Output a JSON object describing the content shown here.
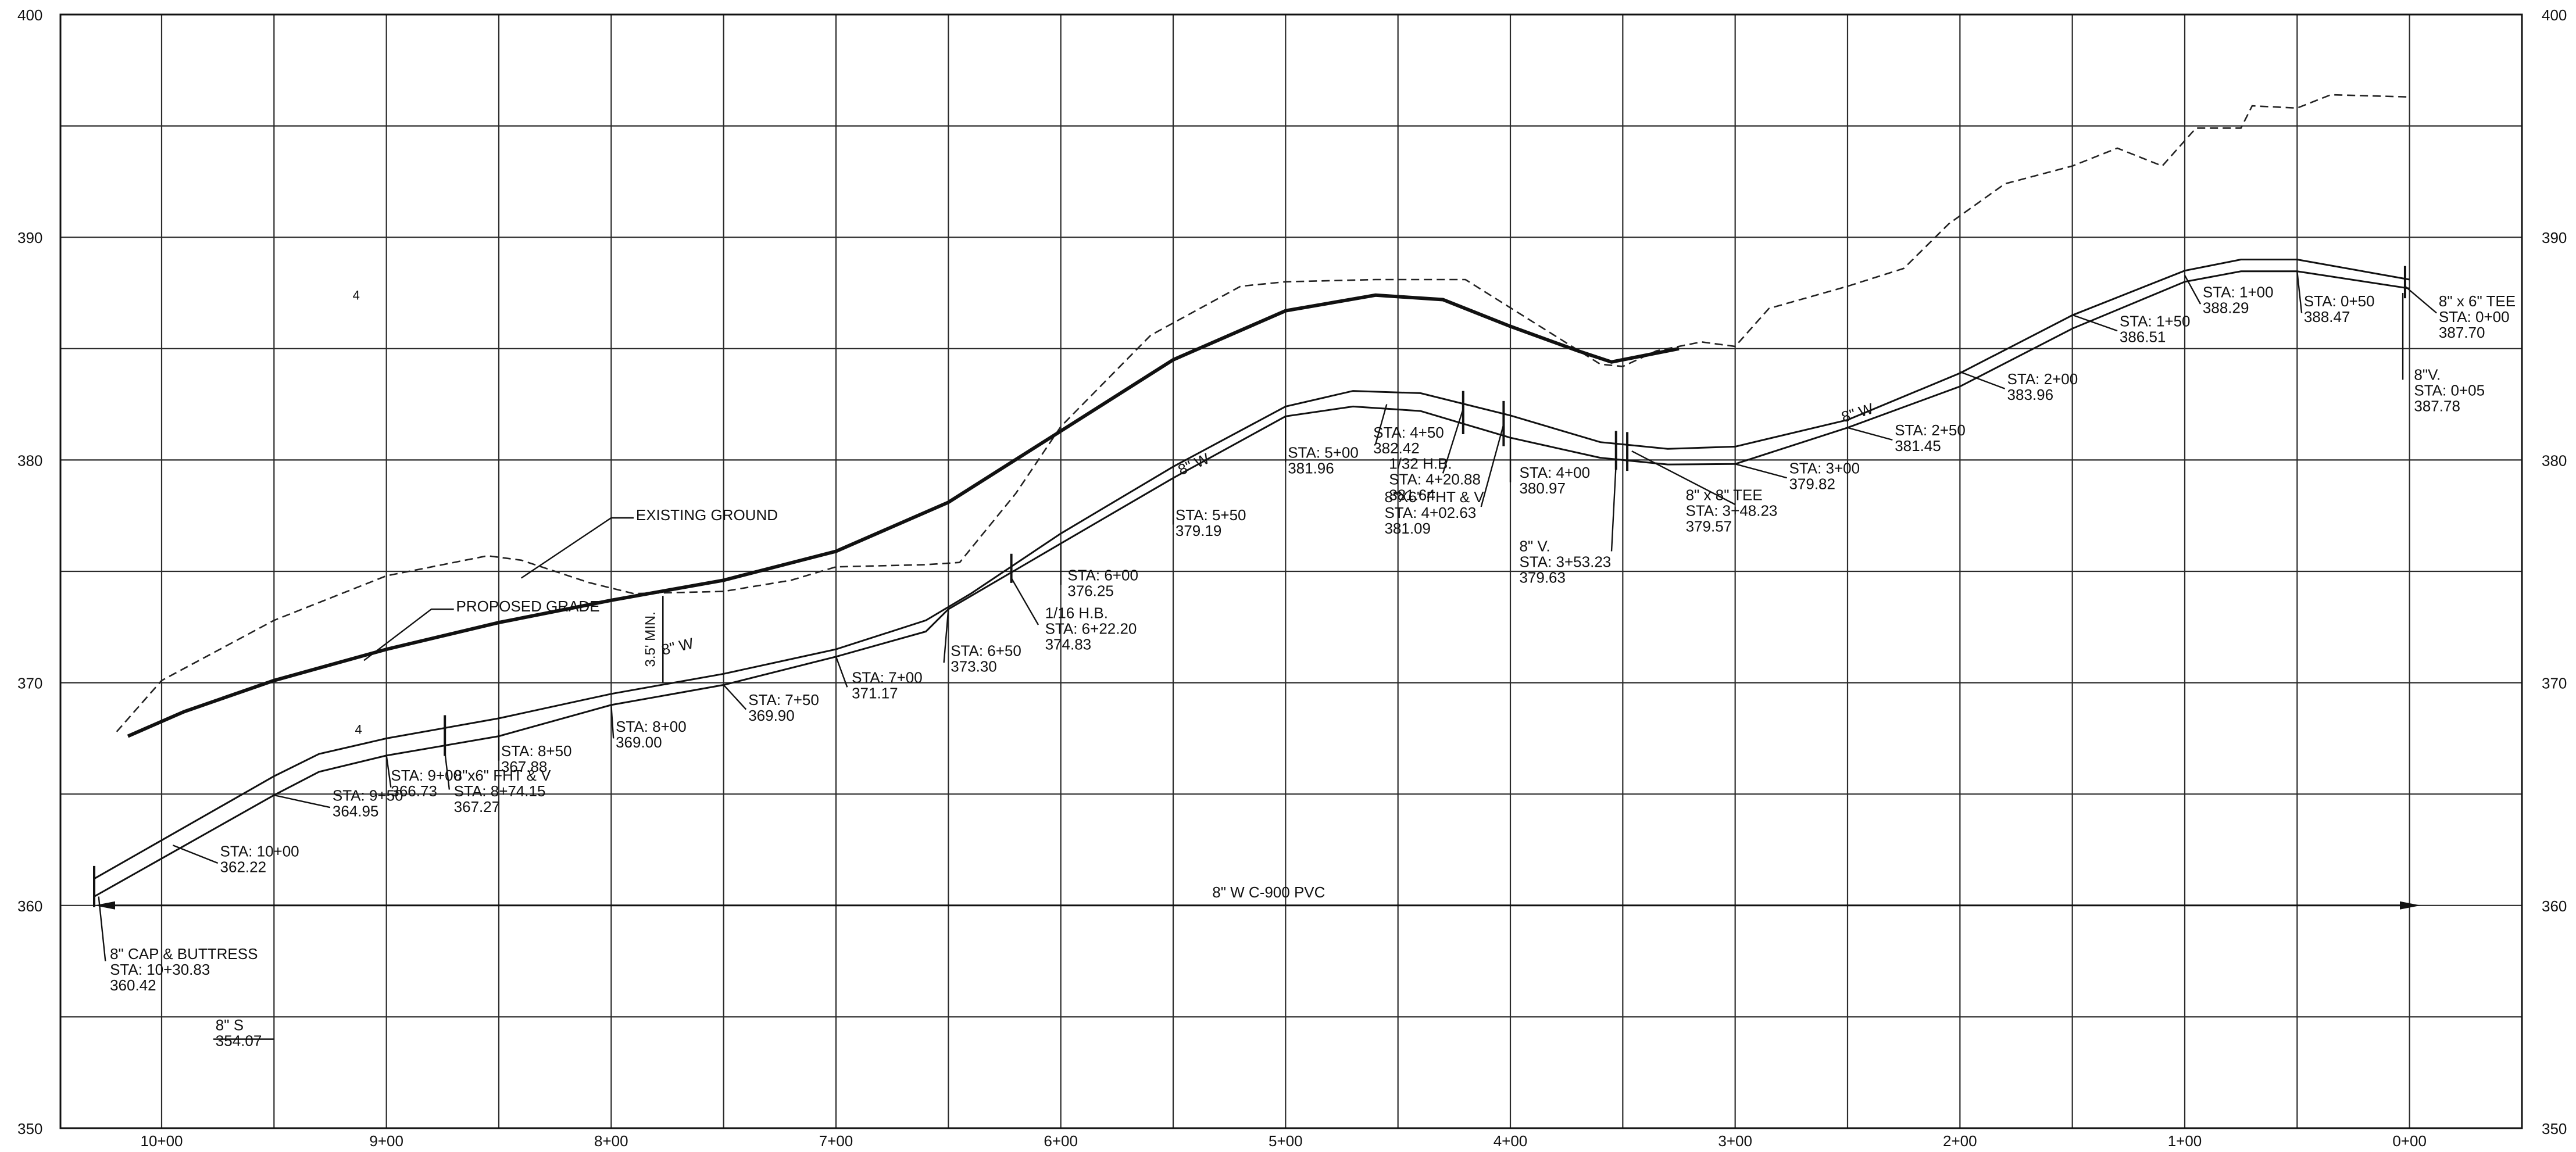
{
  "profile": {
    "axis": {
      "elevations": [
        350,
        360,
        370,
        380,
        390,
        400
      ],
      "elevation_labels": [
        "350",
        "360",
        "370",
        "380",
        "390",
        "400"
      ],
      "stations": [
        10,
        9,
        8,
        7,
        6,
        5,
        4,
        3,
        2,
        1,
        0
      ],
      "station_labels": [
        "10+00",
        "9+00",
        "8+00",
        "7+00",
        "6+00",
        "5+00",
        "4+00",
        "3+00",
        "2+00",
        "1+00",
        "0+00"
      ],
      "station_range": [
        10.45,
        -0.5
      ],
      "elevation_range": [
        350,
        400
      ]
    },
    "existing_ground": {
      "label": "EXISTING GROUND",
      "points": [
        [
          10.2,
          367.8
        ],
        [
          10.0,
          370.1
        ],
        [
          9.5,
          372.8
        ],
        [
          9.0,
          374.8
        ],
        [
          8.55,
          375.7
        ],
        [
          8.4,
          375.5
        ],
        [
          8.1,
          374.5
        ],
        [
          7.9,
          374.0
        ],
        [
          7.5,
          374.1
        ],
        [
          7.2,
          374.6
        ],
        [
          7.0,
          375.2
        ],
        [
          6.6,
          375.3
        ],
        [
          6.45,
          375.4
        ],
        [
          6.2,
          378.5
        ],
        [
          6.0,
          381.5
        ],
        [
          5.6,
          385.6
        ],
        [
          5.2,
          387.8
        ],
        [
          5.0,
          388.0
        ],
        [
          4.6,
          388.1
        ],
        [
          4.2,
          388.1
        ],
        [
          3.9,
          386.2
        ],
        [
          3.6,
          384.3
        ],
        [
          3.5,
          384.2
        ],
        [
          3.35,
          384.9
        ],
        [
          3.15,
          385.3
        ],
        [
          3.0,
          385.1
        ],
        [
          2.85,
          386.8
        ],
        [
          2.5,
          387.8
        ],
        [
          2.25,
          388.6
        ],
        [
          2.05,
          390.6
        ],
        [
          1.8,
          392.4
        ],
        [
          1.5,
          393.2
        ],
        [
          1.3,
          394.0
        ],
        [
          1.1,
          393.2
        ],
        [
          0.95,
          394.9
        ],
        [
          0.75,
          394.9
        ],
        [
          0.7,
          395.9
        ],
        [
          0.5,
          395.8
        ],
        [
          0.35,
          396.4
        ],
        [
          0.0,
          396.3
        ]
      ]
    },
    "proposed_grade": {
      "label": "PROPOSED GRADE",
      "points": [
        [
          10.15,
          367.6
        ],
        [
          9.9,
          368.7
        ],
        [
          9.5,
          370.1
        ],
        [
          9.0,
          371.5
        ],
        [
          8.5,
          372.7
        ],
        [
          8.0,
          373.7
        ],
        [
          7.5,
          374.6
        ],
        [
          7.0,
          375.9
        ],
        [
          6.5,
          378.1
        ],
        [
          6.0,
          381.3
        ],
        [
          5.5,
          384.5
        ],
        [
          5.0,
          386.7
        ],
        [
          4.6,
          387.4
        ],
        [
          4.3,
          387.2
        ],
        [
          4.0,
          386.0
        ],
        [
          3.7,
          384.9
        ],
        [
          3.55,
          384.4
        ],
        [
          3.4,
          384.7
        ],
        [
          3.25,
          385.0
        ]
      ]
    },
    "pipe_top": {
      "points": [
        [
          10.3,
          361.2
        ],
        [
          9.5,
          365.8
        ],
        [
          9.3,
          366.8
        ],
        [
          9.0,
          367.5
        ],
        [
          8.5,
          368.4
        ],
        [
          8.0,
          369.5
        ],
        [
          7.5,
          370.4
        ],
        [
          7.0,
          371.5
        ],
        [
          6.6,
          372.8
        ],
        [
          6.4,
          374.0
        ],
        [
          6.0,
          376.7
        ],
        [
          5.5,
          379.7
        ],
        [
          5.0,
          382.4
        ],
        [
          4.7,
          383.1
        ],
        [
          4.4,
          383.0
        ],
        [
          4.0,
          382.0
        ],
        [
          3.6,
          380.8
        ],
        [
          3.3,
          380.5
        ],
        [
          3.0,
          380.6
        ],
        [
          2.5,
          381.8
        ],
        [
          2.0,
          383.9
        ],
        [
          1.5,
          386.5
        ],
        [
          1.0,
          388.5
        ],
        [
          0.75,
          389.0
        ],
        [
          0.5,
          389.0
        ],
        [
          0.0,
          388.1
        ]
      ]
    },
    "pipe_bottom": {
      "points": [
        [
          10.3,
          360.4
        ],
        [
          9.5,
          364.95
        ],
        [
          9.3,
          366.0
        ],
        [
          9.0,
          366.73
        ],
        [
          8.5,
          367.6
        ],
        [
          8.0,
          369.0
        ],
        [
          7.5,
          369.9
        ],
        [
          7.0,
          371.17
        ],
        [
          6.6,
          372.3
        ],
        [
          6.5,
          373.3
        ],
        [
          6.0,
          376.25
        ],
        [
          5.5,
          379.19
        ],
        [
          5.0,
          381.96
        ],
        [
          4.7,
          382.4
        ],
        [
          4.4,
          382.2
        ],
        [
          4.0,
          381.0
        ],
        [
          3.6,
          380.1
        ],
        [
          3.3,
          379.8
        ],
        [
          3.0,
          379.82
        ],
        [
          2.5,
          381.45
        ],
        [
          2.0,
          383.3
        ],
        [
          1.5,
          385.9
        ],
        [
          1.0,
          388.0
        ],
        [
          0.75,
          388.47
        ],
        [
          0.5,
          388.47
        ],
        [
          0.0,
          387.7
        ]
      ]
    },
    "main_line": {
      "label": "8\" W C-900 PVC",
      "elevation": 360,
      "from": 10.3,
      "to": -0.05
    },
    "pipe_labels": [
      {
        "text": "8\" W",
        "station": 5.4,
        "elevation": 379.6,
        "angle": -24
      },
      {
        "text": "8\" W",
        "station": 7.7,
        "elevation": 371.4,
        "angle": -13
      },
      {
        "text": "8\" W",
        "station": 2.45,
        "elevation": 381.9,
        "angle": -17
      }
    ],
    "annotations": [
      {
        "id": "sta-10-00",
        "lines": [
          "STA: 10+00",
          "362.22"
        ],
        "leader": [
          [
            9.95,
            362.7
          ],
          [
            9.75,
            361.9
          ]
        ],
        "text_at": [
          9.74,
          362.2
        ]
      },
      {
        "id": "sta-9-50",
        "lines": [
          "STA: 9+50",
          "364.95"
        ],
        "leader": [
          [
            9.5,
            364.95
          ],
          [
            9.25,
            364.4
          ]
        ],
        "text_at": [
          9.24,
          364.7
        ]
      },
      {
        "id": "sta-9-00",
        "lines": [
          "STA: 9+00",
          "366.73"
        ],
        "leader": [
          [
            9.0,
            366.73
          ],
          [
            8.98,
            365.3
          ]
        ],
        "text_at": [
          8.98,
          365.6
        ]
      },
      {
        "id": "fht-8-74",
        "lines": [
          "8\"x6\" FHT & V",
          "STA: 8+74.15",
          "367.27"
        ],
        "leader": [
          [
            8.74,
            366.9
          ],
          [
            8.72,
            365.2
          ]
        ],
        "text_at": [
          8.7,
          365.6
        ]
      },
      {
        "id": "sta-8-50",
        "lines": [
          "STA: 8+50",
          "367.88"
        ],
        "leader": [
          [
            8.5,
            367.88
          ],
          [
            8.5,
            366.5
          ]
        ],
        "text_at": [
          8.49,
          366.7
        ]
      },
      {
        "id": "sta-8-00",
        "lines": [
          "STA: 8+00",
          "369.00"
        ],
        "leader": [
          [
            8.0,
            369.0
          ],
          [
            7.99,
            367.5
          ]
        ],
        "text_at": [
          7.98,
          367.8
        ]
      },
      {
        "id": "sta-7-50",
        "lines": [
          "STA: 7+50",
          "369.90"
        ],
        "leader": [
          [
            7.5,
            369.9
          ],
          [
            7.4,
            368.8
          ]
        ],
        "text_at": [
          7.39,
          369.0
        ]
      },
      {
        "id": "sta-7-00",
        "lines": [
          "STA: 7+00",
          "371.17"
        ],
        "leader": [
          [
            7.0,
            371.17
          ],
          [
            6.95,
            369.8
          ]
        ],
        "text_at": [
          6.93,
          370.0
        ]
      },
      {
        "id": "sta-6-50",
        "lines": [
          "STA: 6+50",
          "373.30"
        ],
        "leader": [
          [
            6.5,
            373.3
          ],
          [
            6.52,
            370.9
          ]
        ],
        "text_at": [
          6.49,
          371.2
        ]
      },
      {
        "id": "hb-6-22",
        "lines": [
          "1/16 H.B.",
          "STA: 6+22.20",
          "374.83"
        ],
        "leader": [
          [
            6.22,
            374.7
          ],
          [
            6.1,
            372.6
          ]
        ],
        "text_at": [
          6.07,
          372.9
        ]
      },
      {
        "id": "sta-6-00",
        "lines": [
          "STA: 6+00",
          "376.25"
        ],
        "leader": [
          [
            6.0,
            376.25
          ],
          [
            6.0,
            374.4
          ]
        ],
        "text_at": [
          5.97,
          374.6
        ]
      },
      {
        "id": "sta-5-50",
        "lines": [
          "STA: 5+50",
          "379.19"
        ],
        "leader": [
          [
            5.5,
            379.19
          ],
          [
            5.5,
            377.1
          ]
        ],
        "text_at": [
          5.49,
          377.3
        ]
      },
      {
        "id": "sta-5-00",
        "lines": [
          "STA: 5+00",
          "381.96"
        ],
        "leader": [
          [
            5.0,
            381.96
          ],
          [
            5.0,
            379.9
          ]
        ],
        "text_at": [
          4.99,
          380.1
        ]
      },
      {
        "id": "sta-4-50",
        "lines": [
          "STA: 4+50",
          "382.42"
        ],
        "leader": [
          [
            4.55,
            382.5
          ],
          [
            4.6,
            380.7
          ]
        ],
        "text_at": [
          4.61,
          381.0
        ]
      },
      {
        "id": "hb-4-20",
        "lines": [
          "1/32 H.B.",
          "STA: 4+20.88",
          "381.64"
        ],
        "leader": [
          [
            4.21,
            382.3
          ],
          [
            4.3,
            379.4
          ]
        ],
        "text_at": [
          4.54,
          379.6
        ]
      },
      {
        "id": "fht-4-02",
        "lines": [
          "8\"X6\" FHT & V",
          "STA: 4+02.63",
          "381.09"
        ],
        "leader": [
          [
            4.03,
            381.6
          ],
          [
            4.13,
            377.9
          ]
        ],
        "text_at": [
          4.56,
          378.1
        ]
      },
      {
        "id": "sta-4-00",
        "lines": [
          "STA: 4+00",
          "380.97"
        ],
        "leader": [
          [
            4.0,
            380.97
          ],
          [
            4.0,
            379.0
          ]
        ],
        "text_at": [
          3.96,
          379.2
        ]
      },
      {
        "id": "v-3-53",
        "lines": [
          "8\" V.",
          "STA: 3+53.23",
          "379.63"
        ],
        "leader": [
          [
            3.53,
            379.8
          ],
          [
            3.55,
            375.9
          ]
        ],
        "text_at": [
          3.96,
          375.9
        ]
      },
      {
        "id": "tee-3-48",
        "lines": [
          "8\" x 8\" TEE",
          "STA: 3+48.23",
          "379.57"
        ],
        "leader": [
          [
            3.46,
            380.4
          ],
          [
            3.0,
            378.0
          ]
        ],
        "text_at": [
          3.22,
          378.2
        ]
      },
      {
        "id": "sta-3-00",
        "lines": [
          "STA: 3+00",
          "379.82"
        ],
        "leader": [
          [
            3.0,
            379.82
          ],
          [
            2.77,
            379.2
          ]
        ],
        "text_at": [
          2.76,
          379.4
        ]
      },
      {
        "id": "sta-2-50",
        "lines": [
          "STA: 2+50",
          "381.45"
        ],
        "leader": [
          [
            2.5,
            381.45
          ],
          [
            2.3,
            380.9
          ]
        ],
        "text_at": [
          2.29,
          381.1
        ]
      },
      {
        "id": "sta-2-00",
        "lines": [
          "STA: 2+00",
          "383.96"
        ],
        "leader": [
          [
            2.0,
            383.96
          ],
          [
            1.8,
            383.2
          ]
        ],
        "text_at": [
          1.79,
          383.4
        ]
      },
      {
        "id": "sta-1-50",
        "lines": [
          "STA: 1+50",
          "386.51"
        ],
        "leader": [
          [
            1.5,
            386.51
          ],
          [
            1.3,
            385.8
          ]
        ],
        "text_at": [
          1.29,
          386.0
        ]
      },
      {
        "id": "sta-1-00",
        "lines": [
          "STA: 1+00",
          "388.29"
        ],
        "leader": [
          [
            1.0,
            388.29
          ],
          [
            0.93,
            387.0
          ]
        ],
        "text_at": [
          0.92,
          387.3
        ]
      },
      {
        "id": "sta-0-50",
        "lines": [
          "STA: 0+50",
          "388.47"
        ],
        "leader": [
          [
            0.5,
            388.47
          ],
          [
            0.48,
            386.6
          ]
        ],
        "text_at": [
          0.47,
          386.9
        ]
      },
      {
        "id": "tee-0-00",
        "lines": [
          "8\" x 6\" TEE",
          "STA: 0+00",
          "387.70"
        ],
        "leader": [
          [
            0.02,
            387.8
          ],
          [
            -0.12,
            386.6
          ]
        ],
        "text_at": [
          -0.13,
          386.9
        ]
      },
      {
        "id": "v-0-05",
        "lines": [
          "8\"V.",
          "STA: 0+05",
          "387.78"
        ],
        "leader": [
          [
            0.03,
            387.5
          ],
          [
            0.03,
            383.6
          ]
        ],
        "text_at": [
          -0.02,
          383.6
        ]
      },
      {
        "id": "cap-buttress",
        "lines": [
          "8\" CAP & BUTTRESS",
          "STA: 10+30.83",
          "360.42"
        ],
        "leader": [
          [
            10.28,
            360.4
          ],
          [
            10.25,
            357.5
          ]
        ],
        "text_at": [
          10.23,
          357.6
        ]
      },
      {
        "id": "sewer-s",
        "lines": [
          "8\" S",
          "354.07"
        ],
        "leader": [
          [
            9.77,
            354.0
          ],
          [
            9.5,
            354.0
          ]
        ],
        "text_at": [
          9.76,
          354.4
        ]
      },
      {
        "id": "existing-ground-label",
        "lines": [
          "EXISTING GROUND"
        ],
        "leader": [
          [
            8.4,
            374.7
          ],
          [
            8.0,
            377.4
          ],
          [
            7.9,
            377.4
          ]
        ],
        "text_at": [
          7.89,
          377.3
        ]
      },
      {
        "id": "proposed-grade-label",
        "lines": [
          "PROPOSED GRADE"
        ],
        "leader": [
          [
            9.1,
            371.0
          ],
          [
            8.8,
            373.3
          ],
          [
            8.7,
            373.3
          ]
        ],
        "text_at": [
          8.69,
          373.2
        ]
      }
    ],
    "min_cover": {
      "text": "3.5' MIN.",
      "station": 7.77,
      "from": 370.0,
      "to": 373.9
    },
    "fittings": [
      10.3,
      8.74,
      6.22,
      4.21,
      4.03,
      3.53,
      3.48,
      0.02
    ],
    "stray_marks": [
      {
        "text": "4",
        "station": 9.15,
        "elevation": 387.2
      },
      {
        "text": "4",
        "station": 9.14,
        "elevation": 367.7
      }
    ]
  }
}
